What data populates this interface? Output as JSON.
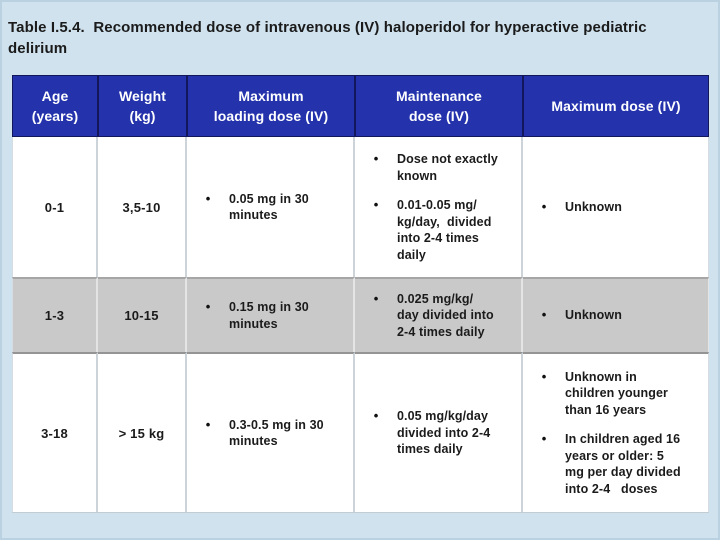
{
  "title": "Table I.5.4.  Recommended dose of intravenous (IV) haloperidol for hyperactive pediatric\ndelirium",
  "glyphs": {
    "bullet": "•"
  },
  "colors": {
    "page_background": "#cfe2ee",
    "header_background": "#2432ac",
    "header_text": "#ffffff",
    "header_divider": "#12175c",
    "alt_row_background": "#c9c9c9",
    "body_text": "#1b1b1b"
  },
  "table": {
    "columns": [
      "Age\n(years)",
      "Weight\n(kg)",
      "Maximum\nloading dose (IV)",
      "Maintenance\ndose (IV)",
      "Maximum dose (IV)"
    ],
    "rows": [
      {
        "age": "0-1",
        "weight": "3,5-10",
        "loading": [
          "0.05 mg in 30\nminutes"
        ],
        "maintenance": [
          "Dose not exactly\nknown",
          "0.01-0.05 mg/\nkg/day,  divided\ninto 2-4 times\ndaily"
        ],
        "maximum": [
          "Unknown"
        ]
      },
      {
        "age": "1-3",
        "weight": "10-15",
        "loading": [
          "0.15 mg in 30\nminutes"
        ],
        "maintenance": [
          "0.025 mg/kg/\nday divided into\n2-4 times daily"
        ],
        "maximum": [
          "Unknown"
        ]
      },
      {
        "age": "3-18",
        "weight": "> 15 kg",
        "loading": [
          "0.3-0.5 mg in 30\nminutes"
        ],
        "maintenance": [
          "0.05 mg/kg/day\ndivided into 2-4\ntimes daily"
        ],
        "maximum": [
          "Unknown in\nchildren younger\nthan 16 years",
          "In children aged 16\nyears or older: 5\nmg per day divided\ninto 2-4   doses"
        ]
      }
    ]
  }
}
